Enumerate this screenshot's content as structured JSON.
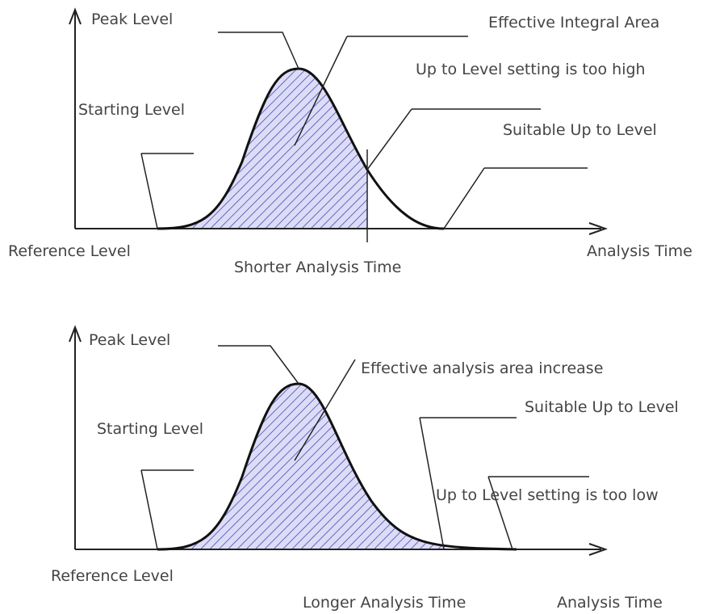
{
  "diagrams": [
    {
      "peak_level": "Peak Level",
      "area": "Effective Integral Area",
      "too_high": "Up to Level setting is too high",
      "starting_level": "Starting Level",
      "suitable": "Suitable Up to Level",
      "reference_level": "Reference Level",
      "analysis_time_marker": "Shorter Analysis Time",
      "x_axis": "Analysis Time"
    },
    {
      "peak_level": "Peak Level",
      "area": "Effective analysis area increase",
      "suitable": "Suitable Up to Level",
      "starting_level": "Starting Level",
      "too_low": "Up to Level setting is too low",
      "reference_level": "Reference Level",
      "analysis_time_marker": "Longer Analysis Time",
      "x_axis": "Analysis Time"
    }
  ]
}
